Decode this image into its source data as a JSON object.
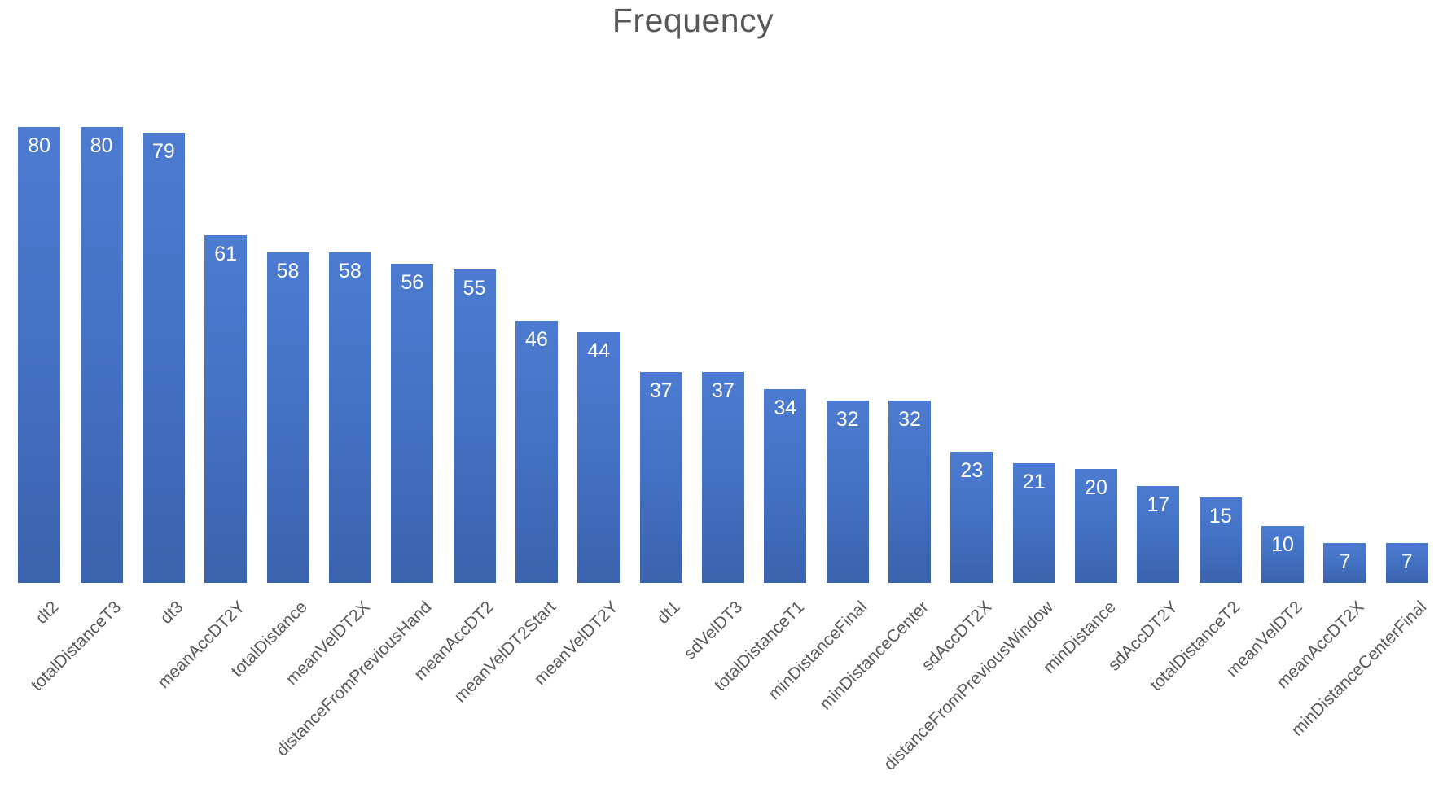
{
  "chart_data": {
    "type": "bar",
    "title": "Frequency",
    "categories": [
      "dt2",
      "totalDistanceT3",
      "dt3",
      "meanAccDT2Y",
      "totalDistance",
      "meanVelDT2X",
      "distanceFromPreviousHand",
      "meanAccDT2",
      "meanVelDT2Start",
      "meanVelDT2Y",
      "dt1",
      "sdVelDT3",
      "totalDistanceT1",
      "minDistanceFinal",
      "minDistanceCenter",
      "sdAccDT2X",
      "distanceFromPreviousWindow",
      "minDistance",
      "sdAccDT2Y",
      "totalDistanceT2",
      "meanVelDT2",
      "meanAccDT2X",
      "minDistanceCenterFinal"
    ],
    "values": [
      80,
      80,
      79,
      61,
      58,
      58,
      56,
      55,
      46,
      44,
      37,
      37,
      34,
      32,
      32,
      23,
      21,
      20,
      17,
      15,
      10,
      7,
      7
    ],
    "xlabel": "",
    "ylabel": "",
    "ylim": [
      0,
      90
    ],
    "grid": false,
    "legend": false,
    "y_axis_visible": false,
    "x_axis_line_visible": false,
    "data_labels_position": "inside-end",
    "x_tick_rotation_deg": 45,
    "bar_effect": "soft drop shadow lower-right"
  },
  "colors": {
    "bar_fill": "#4472C4",
    "bar_gradient_top": "#4C7BD1",
    "bar_gradient_bottom": "#3B63AD",
    "value_label": "#FFFFFF",
    "axis_label": "#595959",
    "title": "#595959",
    "shadow": "#8C8C8C",
    "background": "#FFFFFF"
  }
}
